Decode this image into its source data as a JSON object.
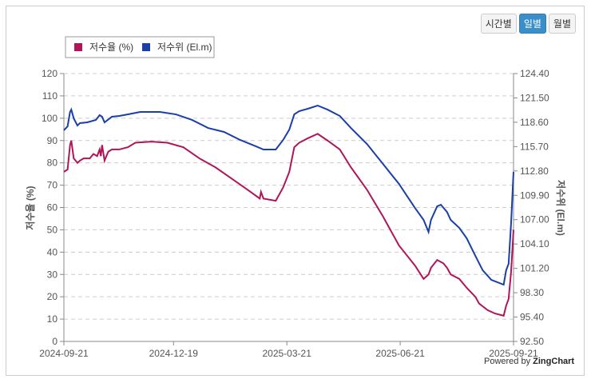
{
  "buttons": {
    "hourly": "시간별",
    "daily": "일별",
    "monthly": "월별",
    "active": "daily"
  },
  "powered": {
    "prefix": "Powered by",
    "brand": "ZingChart"
  },
  "chart_data": {
    "type": "line",
    "x_unit": "days since 2024-09-21",
    "xlabels": [
      "2024-09-21",
      "2024-12-19",
      "2025-03-21",
      "2025-06-21",
      "2025-09-21"
    ],
    "xlabel_days": [
      0,
      89,
      181,
      273,
      365
    ],
    "ylabel_left": "저수율 (%)",
    "ylabel_right": "저수위 (El.m)",
    "yticks_left": [
      "0",
      "10",
      "20",
      "30",
      "40",
      "50",
      "60",
      "70",
      "80",
      "90",
      "100",
      "110",
      "120"
    ],
    "ylim_left": [
      0,
      120
    ],
    "yticks_right": [
      "92.50",
      "95.40",
      "98.30",
      "101.20",
      "104.10",
      "107.00",
      "109.90",
      "112.80",
      "115.70",
      "118.60",
      "121.50",
      "124.40"
    ],
    "ylim_right": [
      92.5,
      124.4
    ],
    "grid": true,
    "legend_placement": "top-left",
    "colors": {
      "rate": "#b0155a",
      "level": "#1a3fa8"
    },
    "series": [
      {
        "name": "저수율 (%)",
        "axis": "left",
        "x": [
          0,
          3,
          5,
          6,
          8,
          11,
          13,
          16,
          21,
          24,
          27,
          29,
          30,
          31,
          33,
          36,
          39,
          45,
          52,
          58,
          71,
          84,
          97,
          110,
          123,
          136,
          149,
          159,
          160,
          162,
          172,
          178,
          183,
          187,
          191,
          198,
          206,
          214,
          224,
          233,
          246,
          259,
          272,
          285,
          292,
          296,
          298,
          303,
          308,
          311,
          314,
          321,
          327,
          334,
          337,
          344,
          350,
          357,
          359,
          361,
          363,
          365
        ],
        "y": [
          76,
          77,
          88,
          90,
          82,
          80,
          81,
          82,
          82,
          84,
          83,
          86,
          83,
          88,
          81,
          85,
          86,
          86,
          87,
          89,
          89.5,
          89,
          87,
          82,
          78,
          73,
          68,
          64,
          67,
          64,
          63,
          69,
          76,
          87,
          89,
          91,
          93,
          90,
          86,
          78,
          68,
          56,
          43,
          34,
          28,
          30,
          33,
          36.5,
          35,
          33,
          30,
          28,
          24,
          20,
          17,
          14,
          12.5,
          11.5,
          16,
          19,
          31,
          50
        ]
      },
      {
        "name": "저수위 (El.m)",
        "axis": "right",
        "x": [
          0,
          3,
          5,
          6,
          8,
          11,
          13,
          19,
          26,
          29,
          31,
          33,
          39,
          45,
          52,
          62,
          78,
          91,
          104,
          117,
          130,
          143,
          156,
          162,
          172,
          178,
          183,
          187,
          191,
          198,
          206,
          214,
          224,
          233,
          246,
          259,
          272,
          285,
          292,
          296,
          298,
          303,
          306,
          311,
          314,
          321,
          327,
          334,
          340,
          347,
          357,
          359,
          361,
          363,
          365
        ],
        "y": [
          117.64,
          118.11,
          119.83,
          120.11,
          119.06,
          118.21,
          118.5,
          118.59,
          118.88,
          119.45,
          119.26,
          118.59,
          119.26,
          119.35,
          119.54,
          119.83,
          119.83,
          119.54,
          118.88,
          117.92,
          117.45,
          116.5,
          115.73,
          115.35,
          115.35,
          116.5,
          117.73,
          119.54,
          119.92,
          120.21,
          120.59,
          120.11,
          119.35,
          117.92,
          116.02,
          113.64,
          111.26,
          108.4,
          106.97,
          105.54,
          106.97,
          108.59,
          108.78,
          107.92,
          106.97,
          106.02,
          104.78,
          102.69,
          100.97,
          99.83,
          99.26,
          100.97,
          101.74,
          106.5,
          112.69
        ]
      }
    ]
  }
}
